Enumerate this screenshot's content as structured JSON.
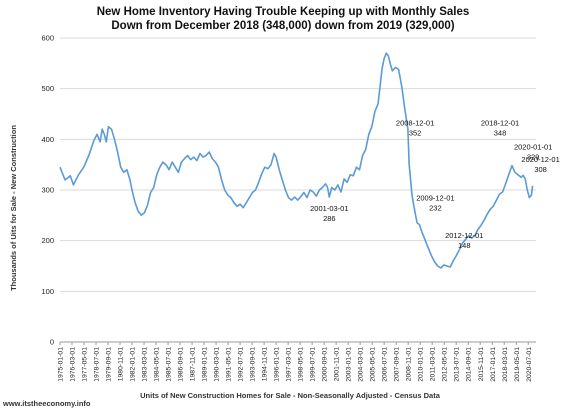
{
  "chart_data": {
    "type": "line",
    "title_line1": "New Home Inventory Having Trouble Keeping up with Monthly Sales",
    "title_line2": "Down from December 2018 (348,000) down from 2019 (329,000)",
    "ylabel": "Thousands of Uits for Sale - New Construction",
    "xlabel": "Units of New Construction Homes for Sale - Non-Seasonally Adjusted - Census Data",
    "source": "www.itstheeconomy.info",
    "ylim": [
      0,
      600
    ],
    "yticks": [
      0,
      100,
      200,
      300,
      400,
      500,
      600
    ],
    "xtick_labels": [
      "1975-01-01",
      "1976-03-01",
      "1977-05-01",
      "1978-07-01",
      "1979-09-01",
      "1980-11-01",
      "1982-01-01",
      "1983-03-01",
      "1984-05-01",
      "1985-07-01",
      "1986-09-01",
      "1987-11-01",
      "1989-01-01",
      "1990-03-01",
      "1991-05-01",
      "1992-07-01",
      "1993-09-01",
      "1994-11-01",
      "1996-01-01",
      "1997-03-01",
      "1998-05-01",
      "1999-07-01",
      "2000-09-01",
      "2001-11-01",
      "2003-01-01",
      "2004-03-01",
      "2005-05-01",
      "2006-07-01",
      "2007-09-01",
      "2008-11-01",
      "2010-01-01",
      "2011-03-01",
      "2012-05-01",
      "2013-07-01",
      "2014-09-01",
      "2015-11-01",
      "2017-01-01",
      "2018-03-01",
      "2019-05-01",
      "2020-07-01"
    ],
    "grid": true,
    "color": "#5b9bd5",
    "series": [
      {
        "points": [
          [
            1975.0,
            345
          ],
          [
            1975.5,
            320
          ],
          [
            1976.0,
            328
          ],
          [
            1976.3,
            310
          ],
          [
            1976.8,
            330
          ],
          [
            1977.3,
            345
          ],
          [
            1977.8,
            368
          ],
          [
            1978.3,
            398
          ],
          [
            1978.6,
            410
          ],
          [
            1978.9,
            395
          ],
          [
            1979.1,
            420
          ],
          [
            1979.3,
            410
          ],
          [
            1979.5,
            395
          ],
          [
            1979.7,
            425
          ],
          [
            1980.0,
            420
          ],
          [
            1980.3,
            400
          ],
          [
            1980.6,
            375
          ],
          [
            1980.9,
            345
          ],
          [
            1981.2,
            335
          ],
          [
            1981.5,
            340
          ],
          [
            1981.8,
            320
          ],
          [
            1982.0,
            300
          ],
          [
            1982.3,
            275
          ],
          [
            1982.6,
            258
          ],
          [
            1982.9,
            250
          ],
          [
            1983.2,
            255
          ],
          [
            1983.5,
            270
          ],
          [
            1983.8,
            295
          ],
          [
            1984.1,
            305
          ],
          [
            1984.4,
            330
          ],
          [
            1984.7,
            345
          ],
          [
            1985.0,
            355
          ],
          [
            1985.3,
            350
          ],
          [
            1985.6,
            340
          ],
          [
            1985.9,
            355
          ],
          [
            1986.2,
            345
          ],
          [
            1986.5,
            335
          ],
          [
            1986.8,
            355
          ],
          [
            1987.1,
            362
          ],
          [
            1987.4,
            368
          ],
          [
            1987.7,
            360
          ],
          [
            1988.0,
            365
          ],
          [
            1988.3,
            358
          ],
          [
            1988.6,
            372
          ],
          [
            1988.9,
            365
          ],
          [
            1989.2,
            368
          ],
          [
            1989.5,
            375
          ],
          [
            1989.8,
            362
          ],
          [
            1990.1,
            355
          ],
          [
            1990.4,
            345
          ],
          [
            1990.7,
            320
          ],
          [
            1991.0,
            300
          ],
          [
            1991.3,
            290
          ],
          [
            1991.6,
            285
          ],
          [
            1991.9,
            275
          ],
          [
            1992.2,
            268
          ],
          [
            1992.5,
            272
          ],
          [
            1992.8,
            265
          ],
          [
            1993.1,
            275
          ],
          [
            1993.4,
            285
          ],
          [
            1993.7,
            295
          ],
          [
            1994.0,
            300
          ],
          [
            1994.3,
            315
          ],
          [
            1994.6,
            332
          ],
          [
            1994.9,
            345
          ],
          [
            1995.2,
            342
          ],
          [
            1995.5,
            350
          ],
          [
            1995.8,
            372
          ],
          [
            1996.0,
            365
          ],
          [
            1996.3,
            340
          ],
          [
            1996.6,
            320
          ],
          [
            1996.9,
            300
          ],
          [
            1997.2,
            285
          ],
          [
            1997.5,
            280
          ],
          [
            1997.8,
            286
          ],
          [
            1998.1,
            280
          ],
          [
            1998.4,
            287
          ],
          [
            1998.7,
            295
          ],
          [
            1999.0,
            285
          ],
          [
            1999.3,
            300
          ],
          [
            1999.6,
            296
          ],
          [
            1999.9,
            288
          ],
          [
            2000.2,
            300
          ],
          [
            2000.5,
            305
          ],
          [
            2000.8,
            312
          ],
          [
            2001.0,
            305
          ],
          [
            2001.17,
            286
          ],
          [
            2001.4,
            305
          ],
          [
            2001.7,
            300
          ],
          [
            2002.0,
            310
          ],
          [
            2002.3,
            296
          ],
          [
            2002.6,
            322
          ],
          [
            2002.9,
            315
          ],
          [
            2003.2,
            330
          ],
          [
            2003.5,
            328
          ],
          [
            2003.8,
            345
          ],
          [
            2004.1,
            340
          ],
          [
            2004.4,
            368
          ],
          [
            2004.7,
            380
          ],
          [
            2005.0,
            410
          ],
          [
            2005.3,
            425
          ],
          [
            2005.6,
            455
          ],
          [
            2005.9,
            470
          ],
          [
            2006.1,
            505
          ],
          [
            2006.3,
            540
          ],
          [
            2006.5,
            560
          ],
          [
            2006.7,
            570
          ],
          [
            2006.9,
            565
          ],
          [
            2007.1,
            548
          ],
          [
            2007.3,
            535
          ],
          [
            2007.6,
            542
          ],
          [
            2007.9,
            538
          ],
          [
            2008.2,
            505
          ],
          [
            2008.5,
            460
          ],
          [
            2008.8,
            420
          ],
          [
            2008.92,
            352
          ],
          [
            2009.2,
            290
          ],
          [
            2009.5,
            255
          ],
          [
            2009.7,
            235
          ],
          [
            2009.92,
            232
          ],
          [
            2010.2,
            215
          ],
          [
            2010.5,
            200
          ],
          [
            2010.8,
            185
          ],
          [
            2011.1,
            170
          ],
          [
            2011.4,
            158
          ],
          [
            2011.7,
            150
          ],
          [
            2012.0,
            146
          ],
          [
            2012.3,
            152
          ],
          [
            2012.6,
            150
          ],
          [
            2012.92,
            148
          ],
          [
            2013.2,
            160
          ],
          [
            2013.5,
            170
          ],
          [
            2013.8,
            182
          ],
          [
            2014.1,
            195
          ],
          [
            2014.4,
            202
          ],
          [
            2014.7,
            210
          ],
          [
            2015.0,
            205
          ],
          [
            2015.3,
            210
          ],
          [
            2015.6,
            222
          ],
          [
            2015.9,
            230
          ],
          [
            2016.2,
            240
          ],
          [
            2016.5,
            252
          ],
          [
            2016.8,
            262
          ],
          [
            2017.1,
            268
          ],
          [
            2017.4,
            280
          ],
          [
            2017.7,
            292
          ],
          [
            2018.0,
            296
          ],
          [
            2018.3,
            312
          ],
          [
            2018.6,
            330
          ],
          [
            2018.92,
            348
          ],
          [
            2019.2,
            335
          ],
          [
            2019.5,
            330
          ],
          [
            2019.8,
            325
          ],
          [
            2020.0,
            329
          ],
          [
            2020.2,
            322
          ],
          [
            2020.4,
            300
          ],
          [
            2020.6,
            285
          ],
          [
            2020.8,
            290
          ],
          [
            2020.92,
            308
          ]
        ]
      }
    ],
    "annotations": [
      {
        "date": "2001-03-01",
        "value": "286",
        "x": 2001.17,
        "y": 286
      },
      {
        "date": "2008-12-01",
        "value": "352",
        "x": 2008.92,
        "y": 352
      },
      {
        "date": "2009-12-01",
        "value": "232",
        "x": 2009.92,
        "y": 232
      },
      {
        "date": "2012-12-01",
        "value": "148",
        "x": 2012.92,
        "y": 148
      },
      {
        "date": "2018-12-01",
        "value": "348",
        "x": 2018.92,
        "y": 348
      },
      {
        "date": "2020-01-01",
        "value": "329",
        "x": 2020.0,
        "y": 329
      },
      {
        "date": "2020-12-01",
        "value": "308",
        "x": 2020.92,
        "y": 308
      }
    ]
  }
}
